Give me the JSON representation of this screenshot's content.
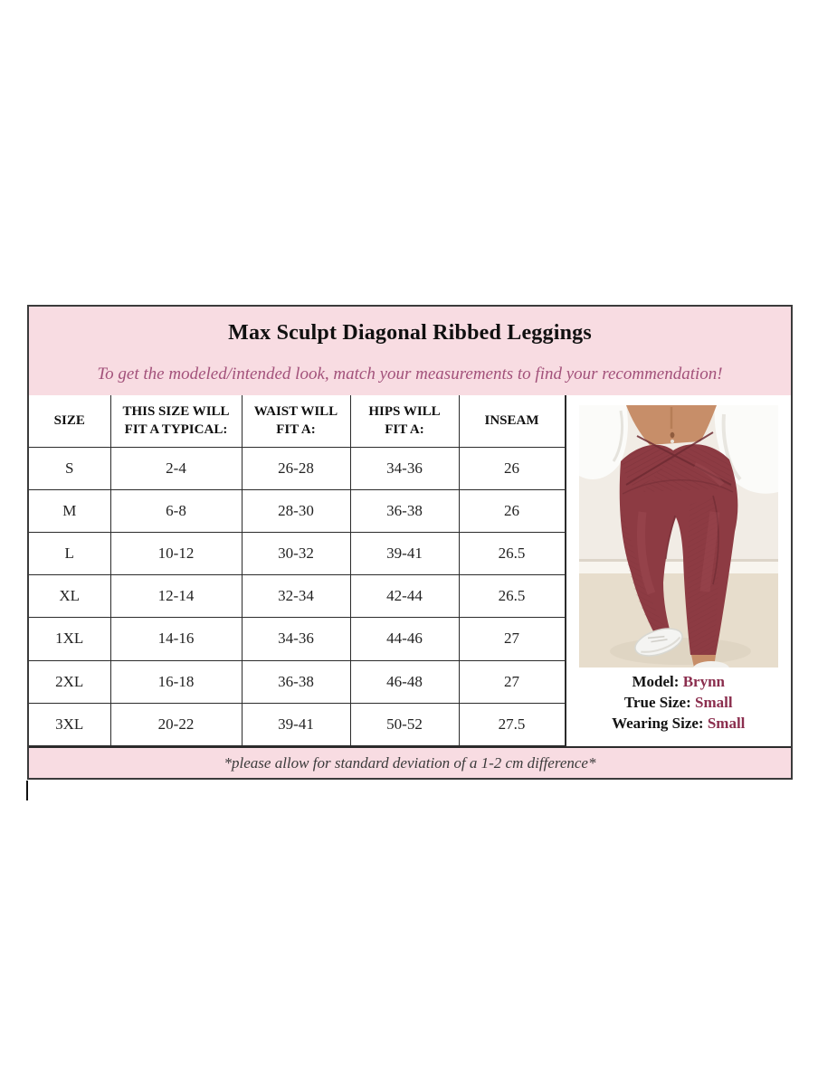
{
  "header": {
    "title": "Max Sculpt Diagonal Ribbed Leggings",
    "subtitle": "To get the modeled/intended look, match your measurements to find your recommendation!"
  },
  "size_table": {
    "columns": [
      "SIZE",
      "THIS SIZE WILL FIT A TYPICAL:",
      "WAIST WILL FIT A:",
      "HIPS WILL FIT A:",
      "INSEAM"
    ],
    "rows": [
      [
        "S",
        "2-4",
        "26-28",
        "34-36",
        "26"
      ],
      [
        "M",
        "6-8",
        "28-30",
        "36-38",
        "26"
      ],
      [
        "L",
        "10-12",
        "30-32",
        "39-41",
        "26.5"
      ],
      [
        "XL",
        "12-14",
        "32-34",
        "42-44",
        "26.5"
      ],
      [
        "1XL",
        "14-16",
        "34-36",
        "44-46",
        "27"
      ],
      [
        "2XL",
        "16-18",
        "36-38",
        "46-48",
        "27"
      ],
      [
        "3XL",
        "20-22",
        "39-41",
        "50-52",
        "27.5"
      ]
    ]
  },
  "model_panel": {
    "photo": "model-wearing-maroon-crossover-ribbed-leggings",
    "info": [
      {
        "label": "Model:",
        "value": "Brynn"
      },
      {
        "label": "True Size:",
        "value": "Small"
      },
      {
        "label": "Wearing Size:",
        "value": "Small"
      }
    ]
  },
  "footnote": "*please allow for standard deviation of a 1-2 cm difference*",
  "colors": {
    "panel_pink": "#f8dce2",
    "subtitle": "#a2517a",
    "accent_burgundy": "#8b2e4e",
    "outer_border": "#3b3b3b",
    "table_border": "#2b2b2b",
    "leggings_maroon": "#8d3b43"
  }
}
